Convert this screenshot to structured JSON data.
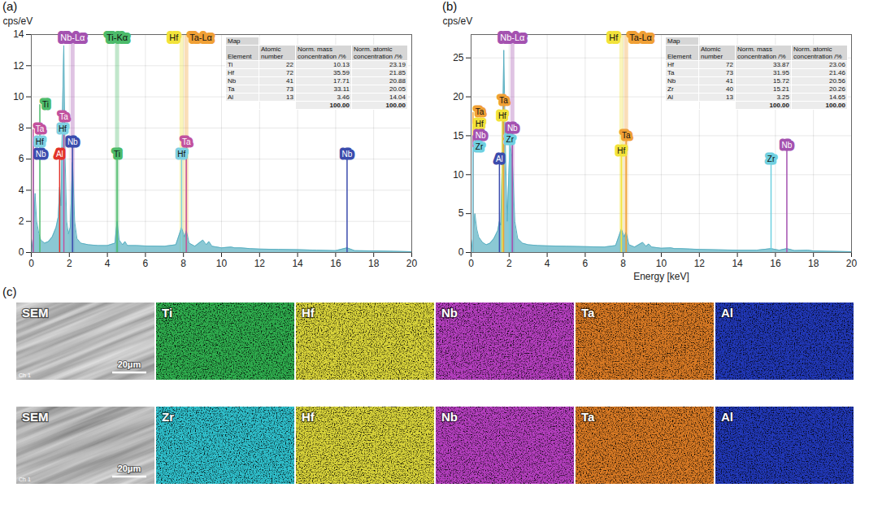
{
  "chart_data": [
    {
      "type": "area",
      "panel": "(a)",
      "ylabel": "cps/eV",
      "color": "#5ab0c2",
      "grid": true,
      "xlim": [
        0,
        20
      ],
      "xticks": [
        0,
        2,
        4,
        6,
        8,
        10,
        12,
        14,
        16,
        18,
        20
      ],
      "ylim": [
        0,
        14
      ],
      "yticks": [
        0,
        2,
        4,
        6,
        8,
        10,
        12,
        14
      ],
      "x": [
        0,
        0.1,
        0.2,
        0.28,
        0.4,
        0.5,
        0.7,
        0.9,
        1.1,
        1.3,
        1.42,
        1.49,
        1.56,
        1.64,
        1.71,
        1.78,
        1.86,
        1.95,
        2.05,
        2.17,
        2.28,
        2.4,
        2.6,
        3.0,
        3.5,
        4.0,
        4.4,
        4.51,
        4.62,
        4.8,
        4.93,
        5.05,
        5.5,
        6.0,
        7.0,
        7.6,
        7.9,
        8.05,
        8.15,
        8.3,
        8.6,
        9.02,
        9.2,
        9.34,
        9.5,
        10,
        10.5,
        10.7,
        11,
        11.5,
        12,
        13,
        14,
        15,
        16,
        16.6,
        17,
        18,
        19,
        20
      ],
      "values": [
        0,
        1.0,
        3.8,
        2.0,
        1.2,
        0.8,
        0.6,
        0.7,
        1.0,
        1.6,
        2.3,
        4.2,
        3.0,
        9.0,
        13.3,
        6.0,
        2.0,
        1.2,
        1.6,
        5.8,
        2.0,
        0.9,
        0.6,
        0.5,
        0.45,
        0.45,
        0.6,
        2.0,
        0.8,
        0.5,
        0.7,
        0.45,
        0.45,
        0.42,
        0.4,
        0.5,
        1.6,
        1.0,
        1.4,
        0.6,
        0.4,
        0.8,
        0.5,
        0.7,
        0.4,
        0.3,
        0.35,
        0.3,
        0.3,
        0.25,
        0.22,
        0.2,
        0.18,
        0.15,
        0.12,
        0.3,
        0.12,
        0.1,
        0.08,
        0.05
      ],
      "annotations": [
        {
          "text": "Nb",
          "x": 0.1,
          "y": 6.3,
          "color": "#3b4cad"
        },
        {
          "text": "Hf",
          "x": 0.1,
          "y": 7.1,
          "color": "#7fd1e3"
        },
        {
          "text": "Ta",
          "x": 0.1,
          "y": 7.9,
          "color": "#c2529e"
        },
        {
          "text": "Ti",
          "x": 0.45,
          "y": 9.5,
          "color": "#4cbb6a"
        },
        {
          "text": "Al",
          "x": 1.49,
          "y": 6.3,
          "color": "#e2332b"
        },
        {
          "text": "Hf",
          "x": 1.64,
          "y": 7.9,
          "color": "#7fd1e3"
        },
        {
          "text": "Ta",
          "x": 1.71,
          "y": 8.7,
          "color": "#c2529e"
        },
        {
          "text": "Nb",
          "x": 2.17,
          "y": 7.1,
          "color": "#3b4cad"
        },
        {
          "text": "Ti",
          "x": 4.51,
          "y": 6.3,
          "color": "#4cbb6a"
        },
        {
          "text": "Hf",
          "x": 7.9,
          "y": 6.3,
          "color": "#7fd1e3"
        },
        {
          "text": "Ta",
          "x": 8.15,
          "y": 7.1,
          "color": "#c2529e"
        },
        {
          "text": "Nb",
          "x": 16.6,
          "y": 6.3,
          "color": "#3b4cad"
        }
      ],
      "line_labels": [
        {
          "text": "Nb-Lα",
          "x": 2.17,
          "color": "#a452b0"
        },
        {
          "text": "Ti-Kα",
          "x": 4.51,
          "color": "#4cbb6a"
        },
        {
          "text": "Hf",
          "x": 7.9,
          "color": "#f2e33a"
        },
        {
          "text": "Ta-Lα",
          "x": 8.15,
          "color": "#f0a035"
        }
      ],
      "table": {
        "title": "Map",
        "columns": [
          "Element",
          "Atomic number",
          "Norm. mass concentration /%",
          "Norm. atomic concentration /%"
        ],
        "rows": [
          [
            "Ti",
            "22",
            "10.13",
            "23.19"
          ],
          [
            "Hf",
            "72",
            "35.59",
            "21.85"
          ],
          [
            "Nb",
            "41",
            "17.71",
            "20.88"
          ],
          [
            "Ta",
            "73",
            "33.11",
            "20.05"
          ],
          [
            "Al",
            "13",
            "3.46",
            "14.04"
          ]
        ],
        "total": [
          "100.00",
          "100.00"
        ]
      }
    },
    {
      "type": "area",
      "panel": "(b)",
      "ylabel": "cps/eV",
      "xlabel": "Energy [keV]",
      "color": "#5ab0c2",
      "grid": true,
      "xlim": [
        0,
        20
      ],
      "xticks": [
        0,
        2,
        4,
        6,
        8,
        10,
        12,
        14,
        16,
        18,
        20
      ],
      "ylim": [
        0,
        28
      ],
      "yticks": [
        0,
        5,
        10,
        15,
        20,
        25
      ],
      "x": [
        0,
        0.1,
        0.2,
        0.3,
        0.4,
        0.6,
        0.8,
        1.0,
        1.2,
        1.4,
        1.49,
        1.56,
        1.64,
        1.72,
        1.8,
        1.9,
        2.04,
        2.17,
        2.3,
        2.45,
        2.7,
        3.0,
        3.5,
        4.0,
        5.0,
        6.0,
        7.0,
        7.6,
        7.9,
        8.05,
        8.15,
        8.3,
        8.6,
        9.02,
        9.2,
        9.34,
        9.5,
        10,
        10.5,
        10.7,
        11,
        11.5,
        12,
        13,
        14,
        15,
        15.77,
        16.2,
        16.6,
        17,
        17.7,
        18,
        19,
        20
      ],
      "values": [
        0,
        2.0,
        5.0,
        3.0,
        2.0,
        1.3,
        1.0,
        1.2,
        1.8,
        2.8,
        4.0,
        3.5,
        12,
        26,
        14,
        4,
        14,
        12,
        4,
        1.8,
        1.2,
        1.0,
        0.9,
        0.85,
        0.8,
        0.75,
        0.7,
        0.9,
        3.0,
        2.0,
        2.6,
        1.0,
        0.7,
        1.3,
        0.8,
        1.1,
        0.7,
        0.55,
        0.6,
        0.5,
        0.5,
        0.45,
        0.4,
        0.35,
        0.3,
        0.3,
        0.5,
        0.3,
        0.5,
        0.25,
        0.3,
        0.2,
        0.15,
        0.1
      ],
      "annotations": [
        {
          "text": "Ta",
          "x": 0.1,
          "y": 18,
          "color": "#f0a035"
        },
        {
          "text": "Hf",
          "x": 0.1,
          "y": 16.5,
          "color": "#f2e33a"
        },
        {
          "text": "Nb",
          "x": 0.1,
          "y": 15,
          "color": "#a452b0"
        },
        {
          "text": "Zr",
          "x": 0.1,
          "y": 13.5,
          "color": "#6fd0e0"
        },
        {
          "text": "Al",
          "x": 1.49,
          "y": 12,
          "color": "#3b4cad"
        },
        {
          "text": "Zr",
          "x": 2.04,
          "y": 14.5,
          "color": "#6fd0e0"
        },
        {
          "text": "Nb",
          "x": 2.17,
          "y": 16,
          "color": "#a452b0"
        },
        {
          "text": "Hf",
          "x": 1.64,
          "y": 17.5,
          "color": "#f2e33a"
        },
        {
          "text": "Ta",
          "x": 1.71,
          "y": 19.5,
          "color": "#f0a035"
        },
        {
          "text": "Hf",
          "x": 7.9,
          "y": 13,
          "color": "#f2e33a"
        },
        {
          "text": "Ta",
          "x": 8.15,
          "y": 15,
          "color": "#f0a035"
        },
        {
          "text": "Zr",
          "x": 15.77,
          "y": 12,
          "color": "#6fd0e0"
        },
        {
          "text": "Nb",
          "x": 16.6,
          "y": 13.8,
          "color": "#a452b0"
        }
      ],
      "line_labels": [
        {
          "text": "Nb-Lα",
          "x": 2.17,
          "color": "#a452b0"
        },
        {
          "text": "Hf",
          "x": 7.9,
          "color": "#f2e33a"
        },
        {
          "text": "Ta-Lα",
          "x": 8.15,
          "color": "#f0a035"
        }
      ],
      "table": {
        "title": "Map",
        "columns": [
          "Element",
          "Atomic number",
          "Norm. mass concentration /%",
          "Norm. atomic concentration /%"
        ],
        "rows": [
          [
            "Hf",
            "72",
            "33.87",
            "23.06"
          ],
          [
            "Ta",
            "73",
            "31.95",
            "21.46"
          ],
          [
            "Nb",
            "41",
            "15.72",
            "20.56"
          ],
          [
            "Zr",
            "40",
            "15.21",
            "20.26"
          ],
          [
            "Al",
            "13",
            "3.25",
            "14.65"
          ]
        ],
        "total": [
          "100.00",
          "100.00"
        ]
      }
    }
  ],
  "panel_c": {
    "label": "(c)",
    "scale_bar": "20μm",
    "channel_label": "Ch 1",
    "rows": [
      [
        {
          "label": "SEM",
          "color": "#8c8c8c"
        },
        {
          "label": "Ti",
          "color": "#2fae4e"
        },
        {
          "label": "Hf",
          "color": "#d9d43a"
        },
        {
          "label": "Nb",
          "color": "#b63fc0"
        },
        {
          "label": "Ta",
          "color": "#d97a24"
        },
        {
          "label": "Al",
          "color": "#2138b8"
        }
      ],
      [
        {
          "label": "SEM",
          "color": "#8c8c8c"
        },
        {
          "label": "Zr",
          "color": "#2fc0cc"
        },
        {
          "label": "Hf",
          "color": "#d9d43a"
        },
        {
          "label": "Nb",
          "color": "#b63fc0"
        },
        {
          "label": "Ta",
          "color": "#d97a24"
        },
        {
          "label": "Al",
          "color": "#2138b8"
        }
      ]
    ]
  }
}
